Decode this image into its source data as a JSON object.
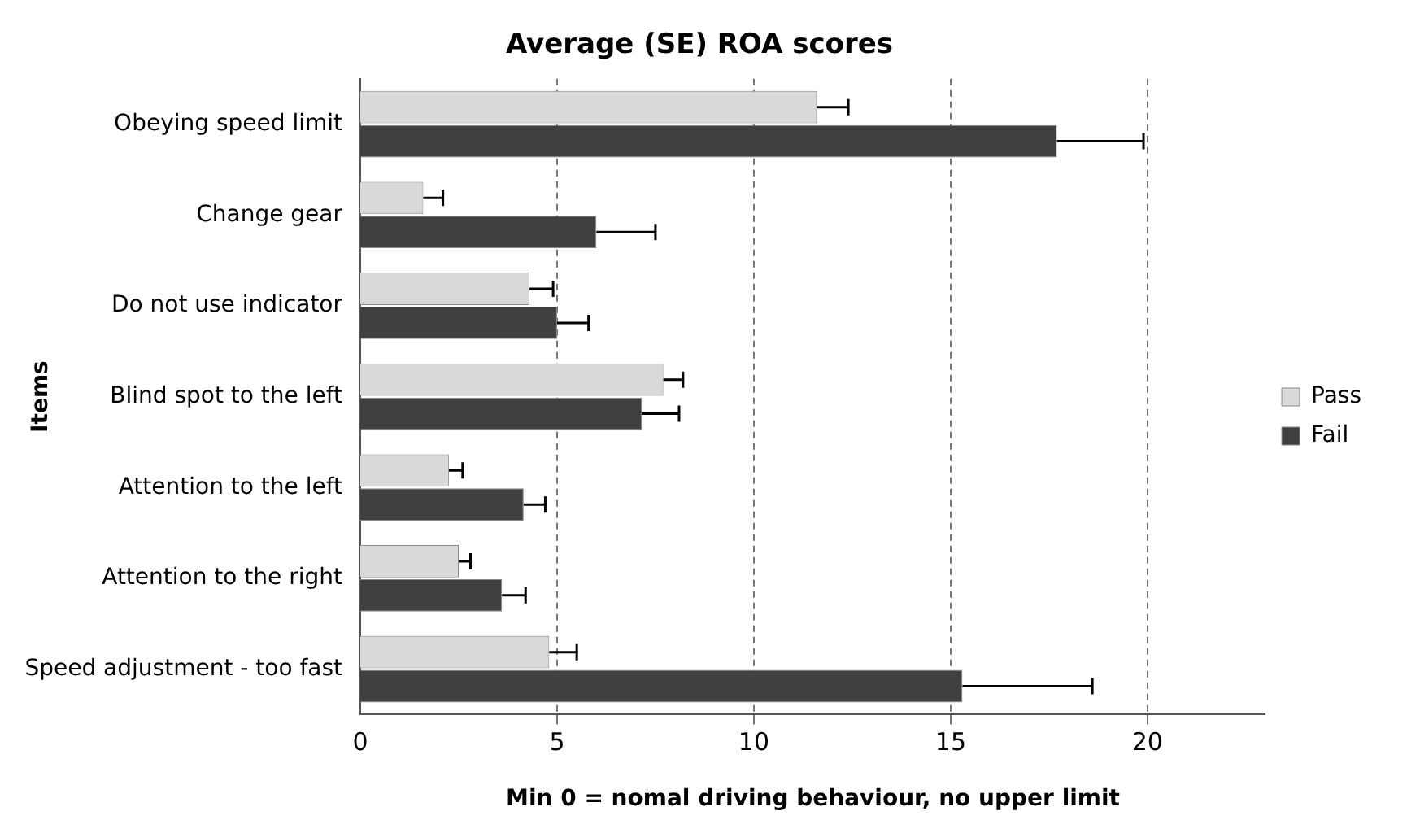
{
  "chart_data": {
    "type": "bar",
    "orientation": "horizontal",
    "title": "Average (SE) ROA scores",
    "xlabel": "Min 0 = nomal driving behaviour, no upper limit",
    "ylabel": "Items",
    "categories": [
      "Obeying speed limit",
      "Change gear",
      "Do not use indicator",
      "Blind spot to the left",
      "Attention to the left",
      "Attention to the right",
      "Speed adjustment - too fast"
    ],
    "series": [
      {
        "name": "Pass",
        "color": "#d9d9d9",
        "values": [
          11.6,
          1.6,
          4.3,
          7.7,
          2.25,
          2.5,
          4.8
        ],
        "errors": [
          [
            11.6,
            12.4
          ],
          [
            1.6,
            2.1
          ],
          [
            4.3,
            4.9
          ],
          [
            7.7,
            8.2
          ],
          [
            2.25,
            2.6
          ],
          [
            2.5,
            2.8
          ],
          [
            4.8,
            5.5
          ]
        ]
      },
      {
        "name": "Fail",
        "color": "#404040",
        "values": [
          17.7,
          6.0,
          5.0,
          7.15,
          4.15,
          3.6,
          15.3
        ],
        "errors": [
          [
            17.7,
            19.9
          ],
          [
            6.0,
            7.5
          ],
          [
            5.0,
            5.8
          ],
          [
            7.15,
            8.1
          ],
          [
            4.15,
            4.7
          ],
          [
            3.6,
            4.2
          ],
          [
            15.3,
            18.6
          ]
        ]
      }
    ],
    "xlim": [
      0,
      23
    ],
    "xticks": [
      0,
      5,
      10,
      15,
      20
    ],
    "grid": "x",
    "legend": "right"
  }
}
